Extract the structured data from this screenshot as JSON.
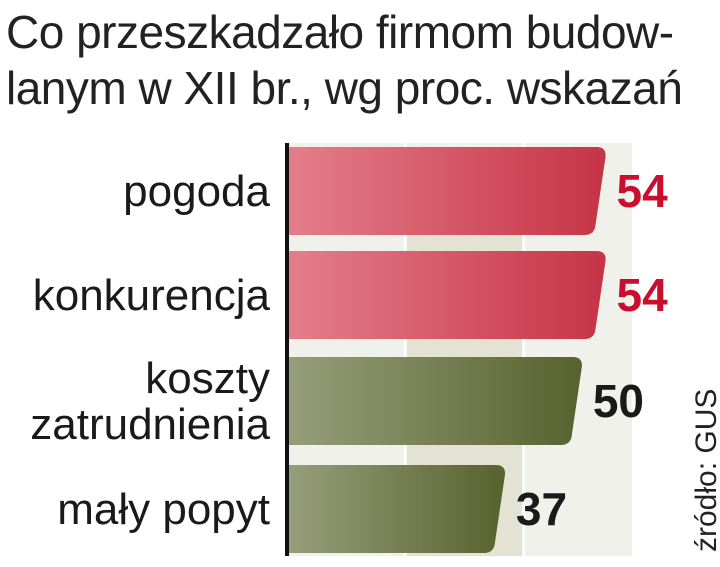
{
  "chart_data": {
    "type": "bar",
    "orientation": "horizontal",
    "title_lines": [
      "Co przeszkadzało firmom budow-",
      "lanym w XII br., wg proc. wskazań"
    ],
    "categories": [
      [
        "pogoda"
      ],
      [
        "konkurencja"
      ],
      [
        "koszty",
        "zatrudnienia"
      ],
      [
        "mały popyt"
      ]
    ],
    "values": [
      54,
      54,
      50,
      37
    ],
    "value_labels": [
      "54",
      "54",
      "50",
      "37"
    ],
    "bar_colors": [
      "#d7384c",
      "#d7384c",
      "#5f6a32",
      "#5f6a32"
    ],
    "value_label_colors": [
      "#c8102e",
      "#c8102e",
      "#1a1a1a",
      "#1a1a1a"
    ],
    "xlim": [
      0,
      60
    ],
    "grid": true,
    "source": "źródło: GUS"
  }
}
